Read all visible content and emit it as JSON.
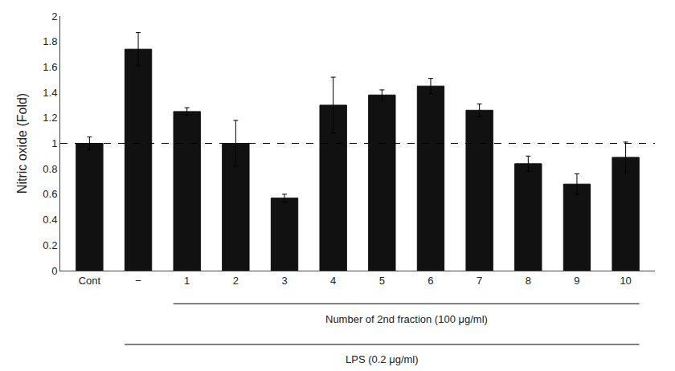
{
  "chart_data": {
    "type": "bar",
    "categories": [
      "Cont",
      "−",
      "1",
      "2",
      "3",
      "4",
      "5",
      "6",
      "7",
      "8",
      "9",
      "10"
    ],
    "values": [
      1.0,
      1.74,
      1.25,
      1.0,
      0.57,
      1.3,
      1.38,
      1.45,
      1.26,
      0.84,
      0.68,
      0.89
    ],
    "errors": [
      0.05,
      0.13,
      0.03,
      0.18,
      0.03,
      0.22,
      0.04,
      0.06,
      0.05,
      0.06,
      0.08,
      0.12
    ],
    "color": "#111111",
    "ylabel": "Nitric oxide (Fold)",
    "ylim": [
      0,
      2.0
    ],
    "yticks": [
      0,
      0.2,
      0.4,
      0.6,
      0.8,
      1,
      1.2,
      1.4,
      1.6,
      1.8,
      2
    ],
    "hline": 1.0,
    "grid": false,
    "annotations": [
      {
        "text": "Number of 2nd fraction (100 μg/ml)",
        "from": "1",
        "to": "10"
      },
      {
        "text": "LPS (0.2 μg/ml)",
        "from": "−",
        "to": "10"
      }
    ]
  }
}
